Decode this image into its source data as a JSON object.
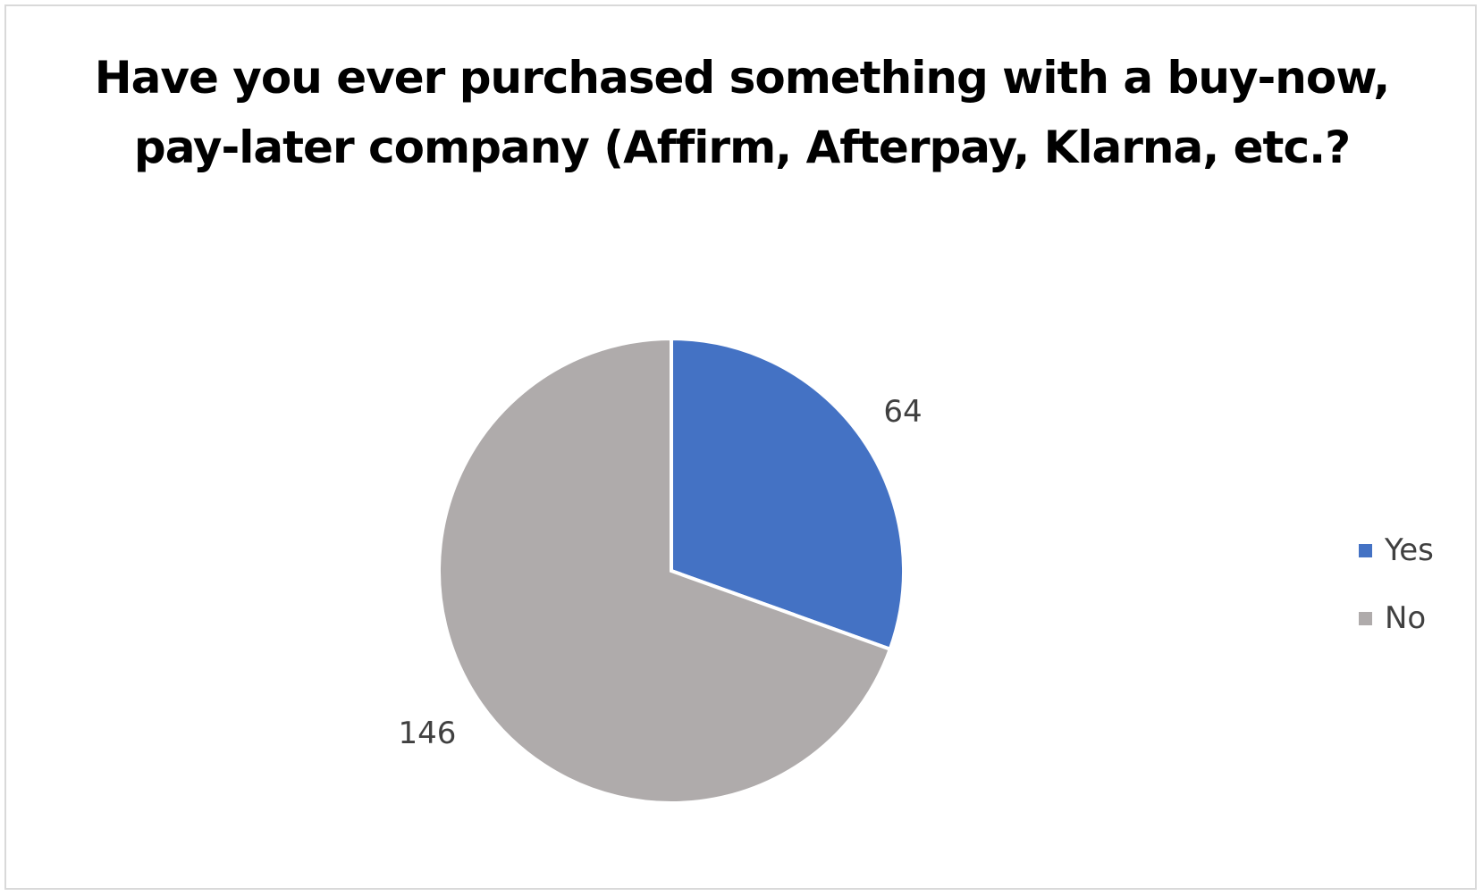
{
  "chart_data": {
    "type": "pie",
    "title": "Have you ever purchased something with a buy-now, pay-later company (Affirm, Afterpay, Klarna, etc.?",
    "categories": [
      "Yes",
      "No"
    ],
    "values": [
      64,
      146
    ],
    "data_labels": [
      "64",
      "146"
    ],
    "colors": [
      "#4472C4",
      "#AFABAB"
    ],
    "legend_position": "right",
    "start_angle": "12 o'clock, clockwise"
  }
}
